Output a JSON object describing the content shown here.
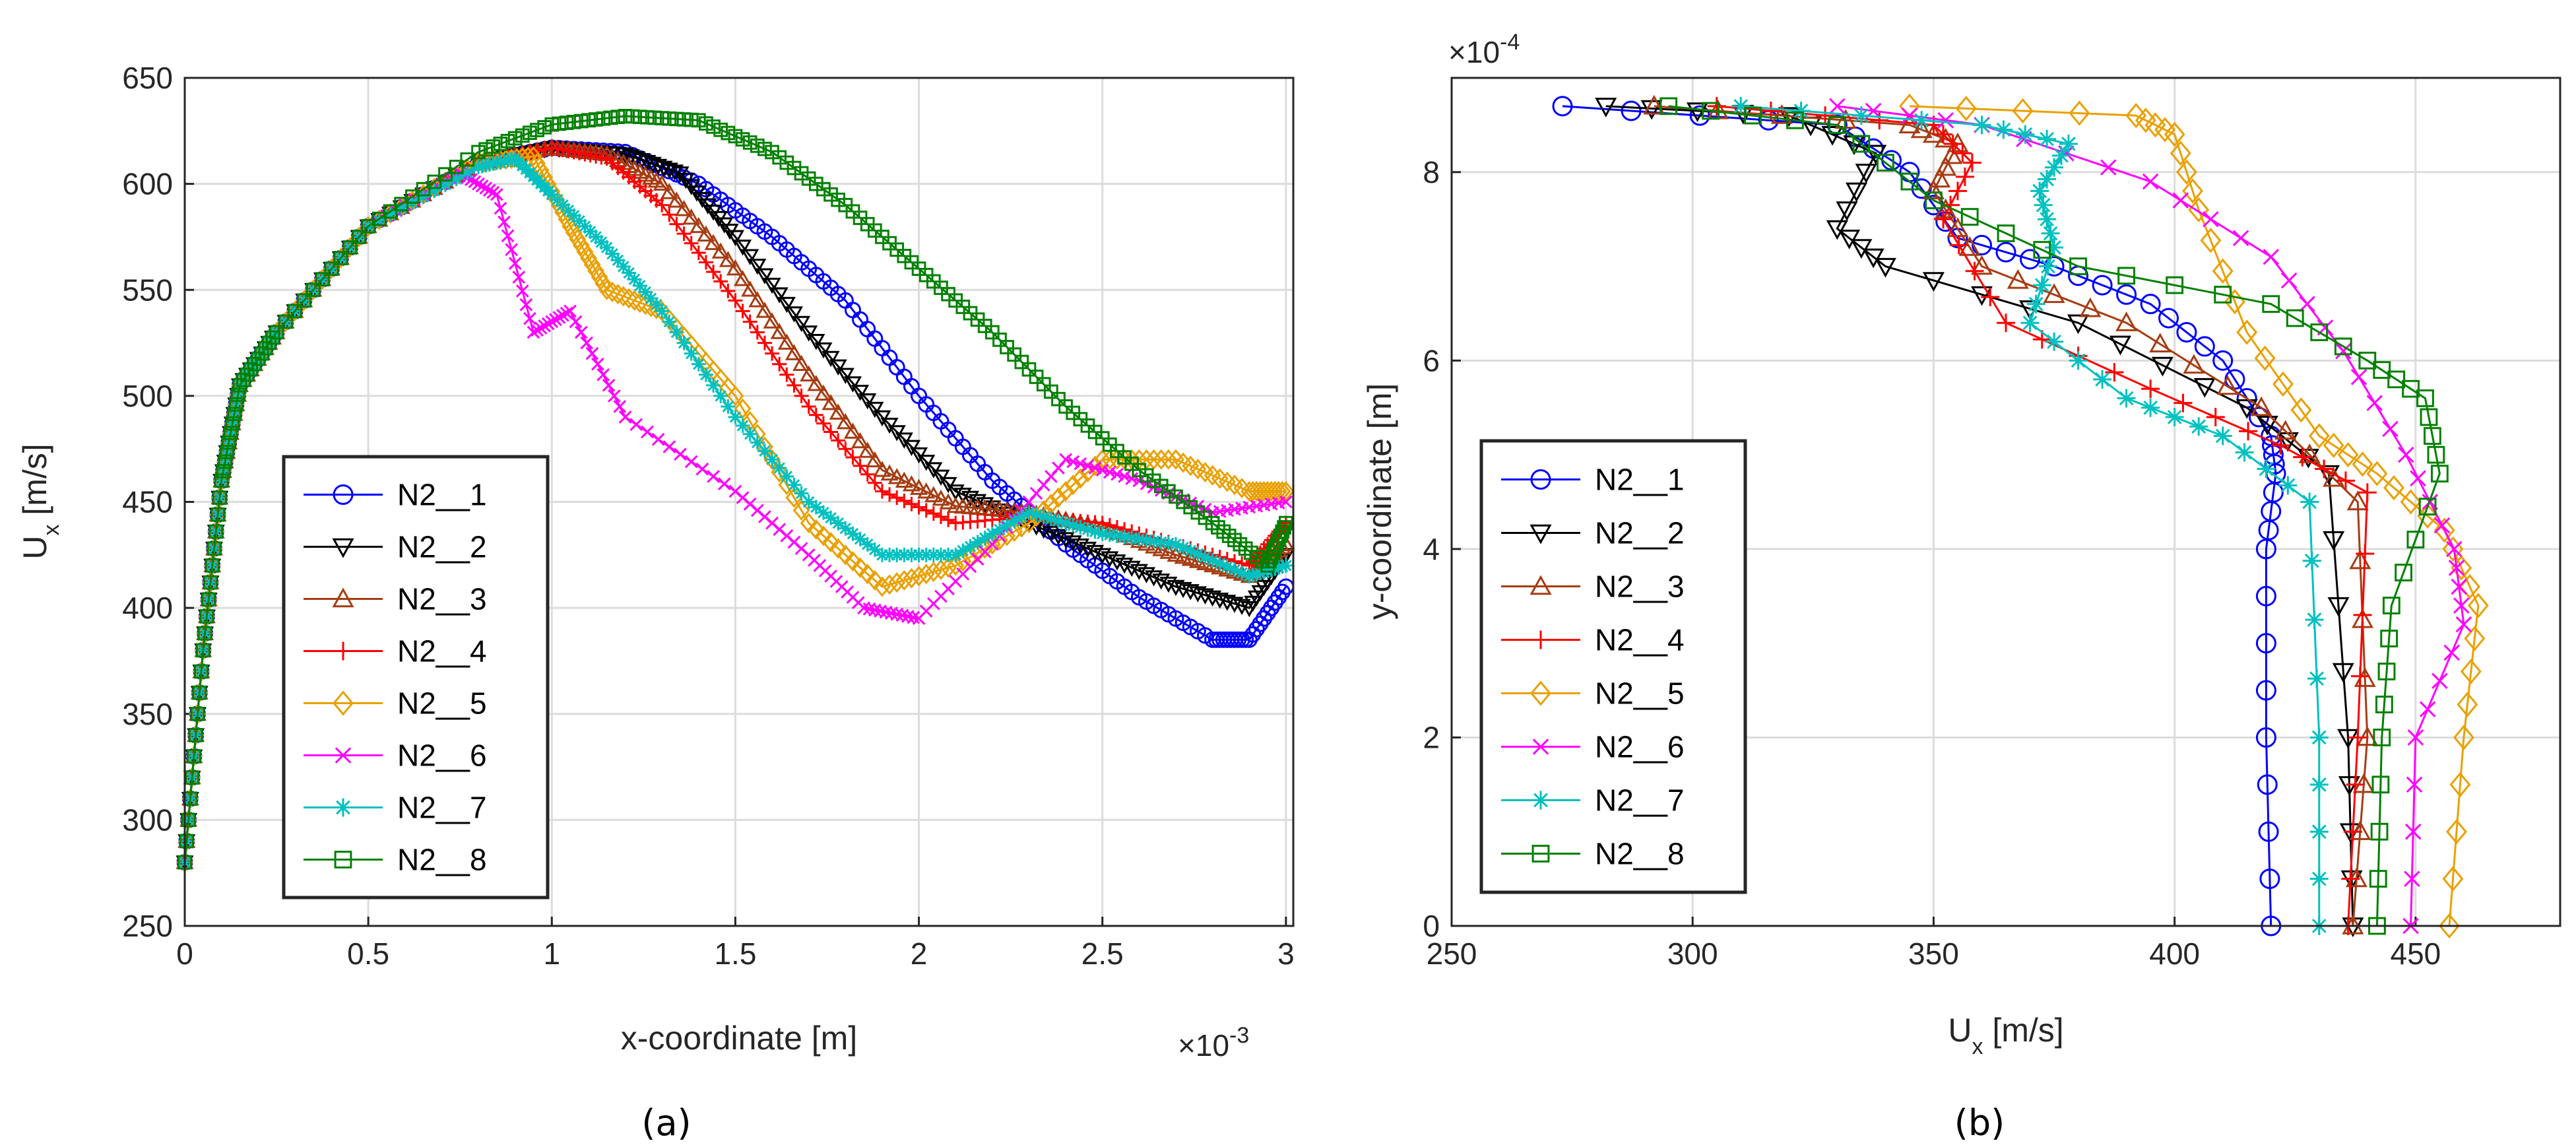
{
  "chart_data": [
    {
      "type": "line",
      "panel_label": "(a)",
      "xlabel": "x-coordinate [m]",
      "ylabel": "U",
      "ylabel_sub": "x",
      "ylabel_unit": " [m/s]",
      "x_exponent_label": "×10",
      "x_exponent_power": "-3",
      "xlim": [
        0,
        3.02
      ],
      "ylim": [
        250,
        650
      ],
      "xticks": [
        0,
        0.5,
        1,
        1.5,
        2,
        2.5,
        3
      ],
      "xtick_labels": [
        "0",
        "0.5",
        "1",
        "1.5",
        "2",
        "2.5",
        "3"
      ],
      "yticks": [
        250,
        300,
        350,
        400,
        450,
        500,
        550,
        600,
        650
      ],
      "ytick_labels": [
        "250",
        "300",
        "350",
        "400",
        "450",
        "500",
        "550",
        "600",
        "650"
      ],
      "grid": true,
      "legend_position": "bottom-left",
      "series": [
        {
          "name": "N2__1",
          "color": "#0000ff",
          "marker": "circle",
          "x": [
            0,
            0.05,
            0.1,
            0.15,
            0.25,
            0.5,
            0.8,
            1.0,
            1.2,
            1.4,
            1.6,
            1.8,
            2.0,
            2.2,
            2.4,
            2.6,
            2.8,
            2.9,
            3.0
          ],
          "y": [
            280,
            380,
            460,
            505,
            530,
            580,
            610,
            617,
            615,
            600,
            575,
            545,
            500,
            460,
            430,
            405,
            385,
            385,
            410
          ]
        },
        {
          "name": "N2__2",
          "color": "#000000",
          "marker": "triangle-down",
          "x": [
            0,
            0.05,
            0.1,
            0.15,
            0.25,
            0.5,
            0.8,
            1.0,
            1.2,
            1.35,
            1.5,
            1.7,
            1.9,
            2.1,
            2.3,
            2.5,
            2.7,
            2.9,
            3.0
          ],
          "y": [
            280,
            380,
            460,
            505,
            530,
            580,
            610,
            617,
            614,
            605,
            575,
            530,
            490,
            455,
            440,
            425,
            410,
            400,
            425
          ]
        },
        {
          "name": "N2__3",
          "color": "#a63c12",
          "marker": "triangle-up",
          "x": [
            0,
            0.05,
            0.1,
            0.15,
            0.25,
            0.5,
            0.8,
            1.0,
            1.15,
            1.3,
            1.5,
            1.7,
            1.9,
            2.1,
            2.3,
            2.5,
            2.7,
            2.9,
            3.0
          ],
          "y": [
            280,
            380,
            460,
            505,
            530,
            580,
            610,
            617,
            614,
            600,
            560,
            510,
            465,
            448,
            445,
            438,
            425,
            415,
            430
          ]
        },
        {
          "name": "N2__4",
          "color": "#ff0000",
          "marker": "plus",
          "x": [
            0,
            0.05,
            0.1,
            0.15,
            0.25,
            0.5,
            0.8,
            1.0,
            1.15,
            1.3,
            1.5,
            1.7,
            1.9,
            2.1,
            2.3,
            2.5,
            2.7,
            2.9,
            3.0
          ],
          "y": [
            280,
            380,
            460,
            505,
            530,
            580,
            610,
            617,
            612,
            590,
            545,
            495,
            455,
            440,
            443,
            440,
            430,
            420,
            440
          ]
        },
        {
          "name": "N2__5",
          "color": "#eaa000",
          "marker": "diamond",
          "x": [
            0,
            0.05,
            0.1,
            0.15,
            0.25,
            0.5,
            0.8,
            0.95,
            1.05,
            1.15,
            1.3,
            1.5,
            1.7,
            1.9,
            2.1,
            2.3,
            2.5,
            2.7,
            2.9,
            3.0
          ],
          "y": [
            280,
            380,
            460,
            505,
            530,
            580,
            610,
            613,
            580,
            550,
            540,
            500,
            440,
            410,
            420,
            440,
            470,
            470,
            455,
            455
          ]
        },
        {
          "name": "N2__6",
          "color": "#ff00ff",
          "marker": "x",
          "x": [
            0,
            0.05,
            0.1,
            0.15,
            0.25,
            0.5,
            0.75,
            0.85,
            0.95,
            1.05,
            1.2,
            1.5,
            1.7,
            1.85,
            2.0,
            2.2,
            2.4,
            2.6,
            2.8,
            3.0
          ],
          "y": [
            280,
            380,
            460,
            505,
            530,
            580,
            605,
            595,
            530,
            540,
            490,
            455,
            425,
            400,
            395,
            430,
            470,
            460,
            445,
            450
          ]
        },
        {
          "name": "N2__7",
          "color": "#00c0c0",
          "marker": "asterisk",
          "x": [
            0,
            0.05,
            0.1,
            0.15,
            0.25,
            0.5,
            0.8,
            0.9,
            1.0,
            1.15,
            1.3,
            1.5,
            1.7,
            1.9,
            2.1,
            2.3,
            2.5,
            2.7,
            2.9,
            3.0
          ],
          "y": [
            280,
            380,
            460,
            505,
            530,
            580,
            608,
            612,
            595,
            570,
            540,
            490,
            450,
            425,
            425,
            445,
            435,
            430,
            415,
            420
          ]
        },
        {
          "name": "N2__8",
          "color": "#008000",
          "marker": "square",
          "x": [
            0,
            0.05,
            0.1,
            0.15,
            0.25,
            0.5,
            0.8,
            1.0,
            1.2,
            1.4,
            1.6,
            1.8,
            2.0,
            2.2,
            2.4,
            2.6,
            2.8,
            2.95,
            3.0
          ],
          "y": [
            280,
            380,
            460,
            505,
            530,
            580,
            615,
            628,
            632,
            630,
            615,
            590,
            560,
            530,
            495,
            465,
            440,
            420,
            440
          ]
        }
      ]
    },
    {
      "type": "line",
      "panel_label": "(b)",
      "xlabel": "U",
      "xlabel_sub": "x",
      "xlabel_unit": " [m/s]",
      "ylabel": "y-coordinate [m]",
      "y_exponent_label": "×10",
      "y_exponent_power": "-4",
      "xlim": [
        250,
        480
      ],
      "ylim": [
        0,
        9
      ],
      "xticks": [
        250,
        300,
        350,
        400,
        450
      ],
      "xtick_labels": [
        "250",
        "300",
        "350",
        "400",
        "450"
      ],
      "yticks": [
        0,
        2,
        4,
        6,
        8
      ],
      "ytick_labels": [
        "0",
        "2",
        "4",
        "6",
        "8"
      ],
      "grid": true,
      "legend_position": "bottom-left",
      "series": [
        {
          "name": "N2__1",
          "color": "#0000ff",
          "marker": "circle",
          "x": [
            273,
            330,
            345,
            355,
            375,
            395,
            410,
            420,
            421,
            419,
            419,
            420
          ],
          "y": [
            8.7,
            8.5,
            8.0,
            7.3,
            7.0,
            6.6,
            6.0,
            5.2,
            4.8,
            4.0,
            2.0,
            0
          ]
        },
        {
          "name": "N2__2",
          "color": "#000000",
          "marker": "triangle-down",
          "x": [
            282,
            320,
            338,
            330,
            340,
            380,
            415,
            432,
            436,
            437
          ],
          "y": [
            8.7,
            8.6,
            8.2,
            7.4,
            7.0,
            6.4,
            5.5,
            4.8,
            2.0,
            0
          ]
        },
        {
          "name": "N2__3",
          "color": "#a63c12",
          "marker": "triangle-up",
          "x": [
            292,
            345,
            355,
            350,
            360,
            390,
            418,
            438,
            440,
            437
          ],
          "y": [
            8.7,
            8.5,
            8.3,
            7.8,
            7.0,
            6.4,
            5.5,
            4.5,
            2.0,
            0
          ]
        },
        {
          "name": "N2__4",
          "color": "#ff0000",
          "marker": "plus",
          "x": [
            305,
            350,
            358,
            352,
            365,
            395,
            422,
            440,
            438,
            436
          ],
          "y": [
            8.7,
            8.5,
            8.1,
            7.5,
            6.4,
            5.7,
            5.1,
            4.6,
            2.0,
            0
          ]
        },
        {
          "name": "N2__5",
          "color": "#eaa000",
          "marker": "diamond",
          "x": [
            345,
            392,
            400,
            405,
            415,
            430,
            442,
            456,
            463,
            460,
            457
          ],
          "y": [
            8.7,
            8.6,
            8.4,
            7.6,
            6.3,
            5.2,
            4.8,
            4.2,
            3.4,
            2.0,
            0
          ]
        },
        {
          "name": "N2__6",
          "color": "#ff00ff",
          "marker": "x",
          "x": [
            330,
            360,
            395,
            420,
            435,
            448,
            458,
            460,
            450,
            449
          ],
          "y": [
            8.7,
            8.5,
            7.9,
            7.1,
            6.1,
            5.0,
            4.0,
            3.2,
            2.0,
            0
          ]
        },
        {
          "name": "N2__7",
          "color": "#00c0c0",
          "marker": "asterisk",
          "x": [
            310,
            360,
            378,
            372,
            375,
            370,
            390,
            410,
            428,
            430,
            430
          ],
          "y": [
            8.7,
            8.5,
            8.3,
            7.8,
            7.2,
            6.4,
            5.6,
            5.2,
            4.5,
            2.0,
            0
          ]
        },
        {
          "name": "N2__8",
          "color": "#008000",
          "marker": "square",
          "x": [
            295,
            330,
            350,
            380,
            420,
            440,
            452,
            455,
            445,
            443,
            442
          ],
          "y": [
            8.7,
            8.5,
            7.7,
            7.0,
            6.6,
            6.0,
            5.6,
            4.8,
            3.4,
            2.0,
            0
          ]
        }
      ]
    }
  ]
}
